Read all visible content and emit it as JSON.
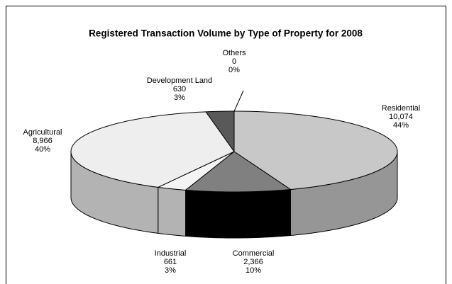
{
  "chart_data": {
    "type": "pie3d",
    "title": "Registered Transaction Volume by Type of Property for 2008",
    "categories": [
      "Residential",
      "Commercial",
      "Industrial",
      "Agricultural",
      "Development Land",
      "Others"
    ],
    "values": [
      10074,
      2366,
      661,
      8966,
      630,
      0
    ],
    "value_labels": [
      "10,074",
      "2,366",
      "661",
      "8,966",
      "630",
      "0"
    ],
    "percent_labels": [
      "44%",
      "10%",
      "3%",
      "40%",
      "3%",
      "0%"
    ],
    "colors": [
      "#c8c8c8",
      "#808080",
      "#f4f4f4",
      "#eeeeee",
      "#595959",
      "#333333"
    ],
    "side_colors": [
      "#969696",
      "#000000",
      "#b3b3b3",
      "#b3b3b3",
      "#3a3a3a",
      "#222222"
    ]
  }
}
